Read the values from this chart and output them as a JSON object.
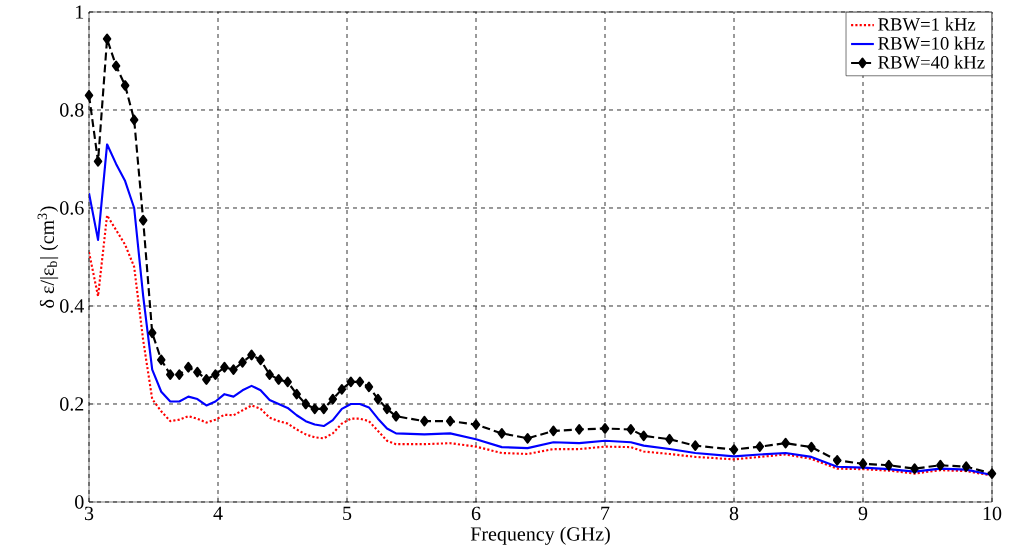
{
  "chart_data": {
    "type": "line",
    "xlabel": "Frequency (GHz)",
    "ylabel": "δ ε/|ε$_{b}$| (cm$^{3}$)",
    "x": [
      3.0,
      3.07,
      3.14,
      3.21,
      3.28,
      3.35,
      3.42,
      3.49,
      3.56,
      3.63,
      3.7,
      3.77,
      3.84,
      3.91,
      3.98,
      4.05,
      4.12,
      4.19,
      4.26,
      4.33,
      4.4,
      4.47,
      4.54,
      4.61,
      4.68,
      4.75,
      4.82,
      4.89,
      4.96,
      5.03,
      5.1,
      5.17,
      5.24,
      5.31,
      5.38,
      5.6,
      5.8,
      6.0,
      6.2,
      6.4,
      6.6,
      6.8,
      7.0,
      7.2,
      7.3,
      7.5,
      7.7,
      8.0,
      8.2,
      8.4,
      8.6,
      8.8,
      9.0,
      9.2,
      9.4,
      9.6,
      9.8,
      10.0
    ],
    "series": [
      {
        "name": "RBW=1 kHz",
        "color": "#ff0000",
        "line_style": "dotted",
        "marker": "none",
        "values": [
          0.51,
          0.42,
          0.585,
          0.555,
          0.525,
          0.48,
          0.33,
          0.21,
          0.185,
          0.165,
          0.168,
          0.175,
          0.17,
          0.162,
          0.168,
          0.178,
          0.177,
          0.187,
          0.197,
          0.19,
          0.172,
          0.165,
          0.16,
          0.148,
          0.138,
          0.132,
          0.13,
          0.14,
          0.16,
          0.17,
          0.17,
          0.165,
          0.145,
          0.125,
          0.118,
          0.118,
          0.12,
          0.113,
          0.1,
          0.098,
          0.108,
          0.108,
          0.113,
          0.112,
          0.103,
          0.098,
          0.092,
          0.087,
          0.092,
          0.097,
          0.088,
          0.068,
          0.067,
          0.064,
          0.058,
          0.065,
          0.063,
          0.054
        ]
      },
      {
        "name": "RBW=10 kHz",
        "color": "#0000ff",
        "line_style": "solid",
        "marker": "none",
        "values": [
          0.63,
          0.535,
          0.73,
          0.69,
          0.655,
          0.6,
          0.42,
          0.27,
          0.225,
          0.205,
          0.205,
          0.215,
          0.21,
          0.197,
          0.205,
          0.22,
          0.215,
          0.228,
          0.237,
          0.228,
          0.208,
          0.2,
          0.192,
          0.177,
          0.165,
          0.158,
          0.155,
          0.167,
          0.19,
          0.2,
          0.2,
          0.193,
          0.17,
          0.15,
          0.14,
          0.138,
          0.14,
          0.128,
          0.112,
          0.11,
          0.122,
          0.12,
          0.125,
          0.122,
          0.115,
          0.108,
          0.1,
          0.093,
          0.097,
          0.1,
          0.092,
          0.072,
          0.07,
          0.067,
          0.062,
          0.068,
          0.066,
          0.055
        ]
      },
      {
        "name": "RBW=40 kHz",
        "color": "#000000",
        "line_style": "dashed",
        "marker": "diamond",
        "values": [
          0.83,
          0.695,
          0.945,
          0.89,
          0.85,
          0.78,
          0.575,
          0.345,
          0.29,
          0.26,
          0.26,
          0.275,
          0.265,
          0.25,
          0.26,
          0.275,
          0.27,
          0.285,
          0.3,
          0.29,
          0.26,
          0.25,
          0.245,
          0.22,
          0.2,
          0.19,
          0.19,
          0.21,
          0.23,
          0.245,
          0.245,
          0.235,
          0.21,
          0.19,
          0.175,
          0.165,
          0.165,
          0.158,
          0.14,
          0.13,
          0.145,
          0.148,
          0.15,
          0.148,
          0.135,
          0.128,
          0.115,
          0.107,
          0.113,
          0.12,
          0.112,
          0.085,
          0.078,
          0.075,
          0.068,
          0.075,
          0.072,
          0.058
        ]
      }
    ],
    "xlim": [
      3,
      10
    ],
    "ylim": [
      0,
      1
    ],
    "xticks": [
      3,
      4,
      5,
      6,
      7,
      8,
      9,
      10
    ],
    "yticks": [
      0,
      0.2,
      0.4,
      0.6,
      0.8,
      1
    ],
    "grid": true,
    "legend": "top right"
  }
}
